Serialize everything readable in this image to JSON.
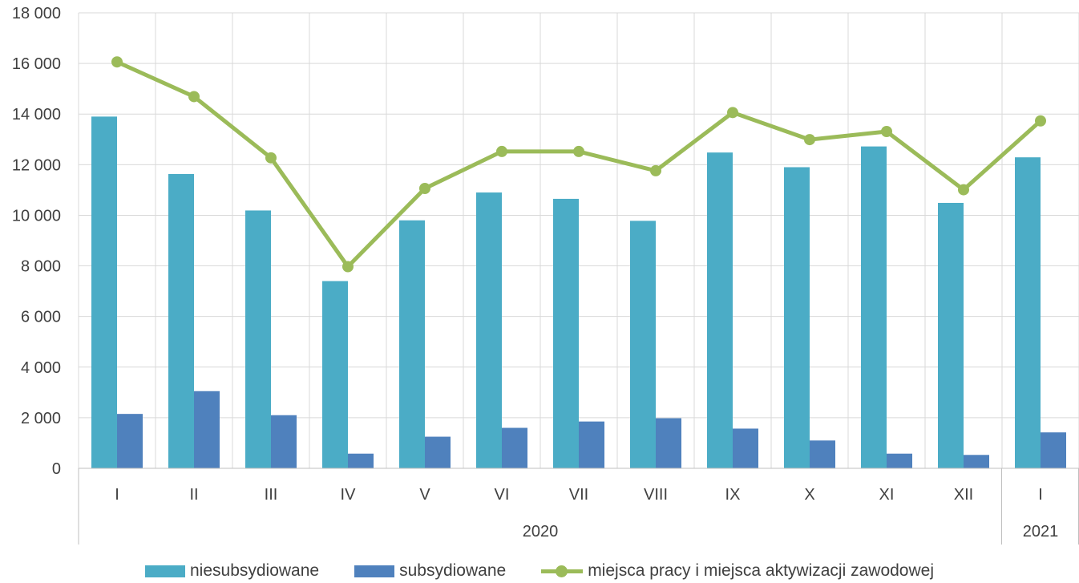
{
  "colors": {
    "niesubsydiowane": "#4BACC6",
    "subsydiowane": "#4F81BD",
    "line": "#9BBB59",
    "grid": "#d9d9d9",
    "axis": "#bfbfbf"
  },
  "chart_data": {
    "type": "bar",
    "title": "",
    "xlabel": "",
    "ylabel": "",
    "ylim": [
      0,
      18000
    ],
    "yticks": [
      0,
      2000,
      4000,
      6000,
      8000,
      10000,
      12000,
      14000,
      16000,
      18000
    ],
    "ytick_labels": [
      "0",
      "2 000",
      "4 000",
      "6 000",
      "8 000",
      "10 000",
      "12 000",
      "14 000",
      "16 000",
      "18 000"
    ],
    "categories": [
      "I",
      "II",
      "III",
      "IV",
      "V",
      "VI",
      "VII",
      "VIII",
      "IX",
      "X",
      "XI",
      "XII",
      "I"
    ],
    "groups": [
      {
        "label": "2020",
        "count": 12
      },
      {
        "label": "2021",
        "count": 1
      }
    ],
    "series": [
      {
        "name": "niesubsydiowane",
        "type": "bar",
        "values": [
          13900,
          11630,
          10190,
          7400,
          9800,
          10900,
          10650,
          9780,
          12480,
          11900,
          12720,
          10490,
          12290
        ]
      },
      {
        "name": "subsydiowane",
        "type": "bar",
        "values": [
          2150,
          3050,
          2100,
          580,
          1250,
          1600,
          1850,
          1980,
          1570,
          1100,
          580,
          530,
          1420
        ]
      },
      {
        "name": "miejsca pracy i miejsca aktywizacji zawodowej",
        "type": "line",
        "values": [
          16060,
          14690,
          12270,
          7970,
          11060,
          12520,
          12520,
          11760,
          14060,
          12990,
          13310,
          11010,
          13730
        ]
      }
    ],
    "grid": true,
    "legend_position": "bottom"
  }
}
